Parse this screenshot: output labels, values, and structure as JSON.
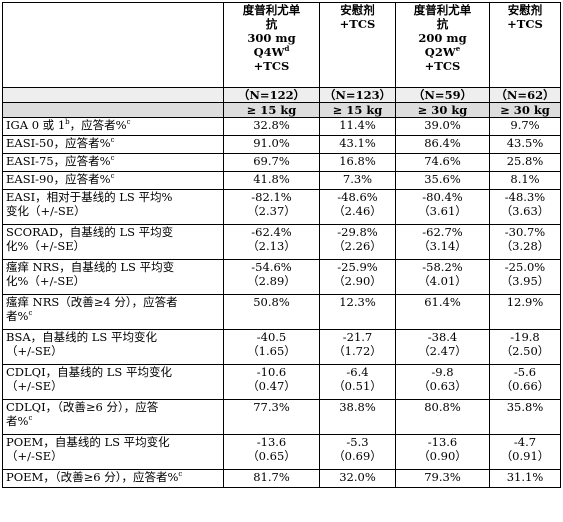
{
  "header": {
    "columns": [
      {
        "lines": [
          "度普利尤单",
          "抗",
          "300 mg",
          "Q4W",
          "+TCS"
        ],
        "sup_line": 3,
        "sup": "d"
      },
      {
        "lines": [
          "安慰剂",
          "+TCS"
        ]
      },
      {
        "lines": [
          "度普利尤单",
          "抗",
          "200 mg",
          "Q2W",
          "+TCS"
        ],
        "sup_line": 3,
        "sup": "e"
      },
      {
        "lines": [
          "安慰剂",
          "+TCS"
        ]
      }
    ],
    "n_values": [
      "（N=122）",
      "（N=123）",
      "（N=59）",
      "（N=62）"
    ],
    "weights": [
      "≥ 15 kg",
      "≥ 15 kg",
      "≥ 30 kg",
      "≥ 30 kg"
    ]
  },
  "rows": [
    {
      "label": [
        "IGA 0 或 1",
        "b",
        "，应答者%",
        "c"
      ],
      "type": "sup2",
      "values": [
        [
          "32.8%"
        ],
        [
          "11.4%"
        ],
        [
          "39.0%"
        ],
        [
          "9.7%"
        ]
      ]
    },
    {
      "label": [
        "EASI-50，应答者%",
        "c"
      ],
      "type": "sup1",
      "values": [
        [
          "91.0%"
        ],
        [
          "43.1%"
        ],
        [
          "86.4%"
        ],
        [
          "43.5%"
        ]
      ]
    },
    {
      "label": [
        "EASI-75，应答者%",
        "c"
      ],
      "type": "sup1",
      "values": [
        [
          "69.7%"
        ],
        [
          "16.8%"
        ],
        [
          "74.6%"
        ],
        [
          "25.8%"
        ]
      ]
    },
    {
      "label": [
        "EASI-90，应答者%",
        "c"
      ],
      "type": "sup1",
      "values": [
        [
          "41.8%"
        ],
        [
          "7.3%"
        ],
        [
          "35.6%"
        ],
        [
          "8.1%"
        ]
      ]
    },
    {
      "label": [
        "EASI，相对于基线的 LS 平均%",
        "变化（+/-SE）"
      ],
      "type": "two",
      "values": [
        [
          "-82.1%",
          "（2.37）"
        ],
        [
          "-48.6%",
          "（2.46）"
        ],
        [
          "-80.4%",
          "（3.61）"
        ],
        [
          "-48.3%",
          "（3.63）"
        ]
      ]
    },
    {
      "label": [
        "SCORAD，自基线的 LS 平均变",
        "化%（+/-SE）"
      ],
      "type": "two",
      "values": [
        [
          "-62.4%",
          "（2.13）"
        ],
        [
          "-29.8%",
          "（2.26）"
        ],
        [
          "-62.7%",
          "（3.14）"
        ],
        [
          "-30.7%",
          "（3.28）"
        ]
      ]
    },
    {
      "label": [
        "瘙痒 NRS，自基线的 LS 平均变",
        "化%（+/-SE）"
      ],
      "type": "two",
      "values": [
        [
          "-54.6%",
          "（2.89）"
        ],
        [
          "-25.9%",
          "（2.90）"
        ],
        [
          "-58.2%",
          "（4.01）"
        ],
        [
          "-25.0%",
          "（3.95）"
        ]
      ]
    },
    {
      "label": [
        "瘙痒 NRS（改善≥4 分），应答者",
        "者%",
        "c"
      ],
      "type": "twosup",
      "values": [
        [
          "50.8%"
        ],
        [
          "12.3%"
        ],
        [
          "61.4%"
        ],
        [
          "12.9%"
        ]
      ]
    },
    {
      "label": [
        "BSA，自基线的 LS 平均变化",
        "（+/-SE）"
      ],
      "type": "two",
      "values": [
        [
          "-40.5",
          "（1.65）"
        ],
        [
          "-21.7",
          "（1.72）"
        ],
        [
          "-38.4",
          "（2.47）"
        ],
        [
          "-19.8",
          "（2.50）"
        ]
      ]
    },
    {
      "label": [
        "CDLQI，自基线的 LS 平均变化",
        "（+/-SE）"
      ],
      "type": "two",
      "values": [
        [
          "-10.6",
          "（0.47）"
        ],
        [
          "-6.4",
          "（0.51）"
        ],
        [
          "-9.8",
          "（0.63）"
        ],
        [
          "-5.6",
          "（0.66）"
        ]
      ]
    },
    {
      "label": [
        "CDLQI，（改善≥6 分），应答",
        "者%",
        "c"
      ],
      "type": "twosup",
      "values": [
        [
          "77.3%"
        ],
        [
          "38.8%"
        ],
        [
          "80.8%"
        ],
        [
          "35.8%"
        ]
      ]
    },
    {
      "label": [
        "POEM，自基线的 LS 平均变化",
        "（+/-SE）"
      ],
      "type": "two",
      "values": [
        [
          "-13.6",
          "（0.65）"
        ],
        [
          "-5.3",
          "（0.69）"
        ],
        [
          "-13.6",
          "（0.90）"
        ],
        [
          "-4.7",
          "（0.91）"
        ]
      ]
    },
    {
      "label": [
        "POEM，（改善≥6 分），应答者%",
        "c"
      ],
      "type": "sup1",
      "values": [
        [
          "81.7%"
        ],
        [
          "32.0%"
        ],
        [
          "79.3%"
        ],
        [
          "31.1%"
        ]
      ]
    }
  ]
}
